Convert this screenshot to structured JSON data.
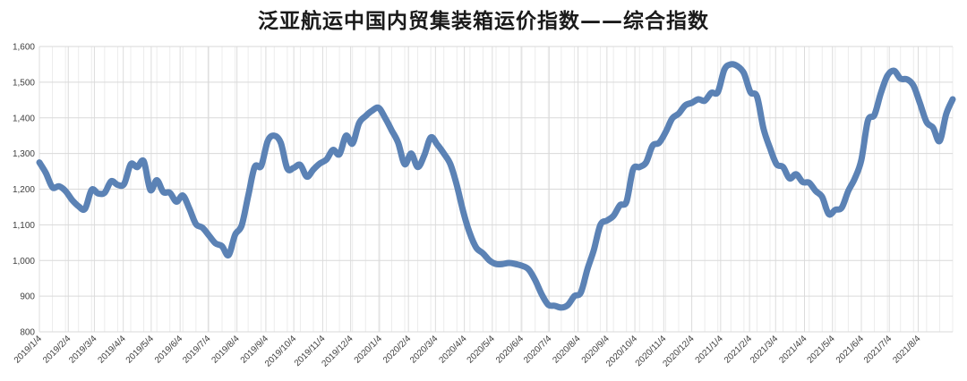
{
  "chart_data": {
    "type": "line",
    "title": "泛亚航运中国内贸集装箱运价指数——综合指数",
    "ylim": [
      800,
      1600
    ],
    "yticks": [
      "800",
      "900",
      "1,000",
      "1,100",
      "1,200",
      "1,300",
      "1,400",
      "1,500",
      "1,600"
    ],
    "ytick_values": [
      800,
      900,
      1000,
      1100,
      1200,
      1300,
      1400,
      1500,
      1600
    ],
    "categories": [
      "2019/1/4",
      "2019/2/4",
      "2019/3/4",
      "2019/4/4",
      "2019/5/4",
      "2019/6/4",
      "2019/7/4",
      "2019/8/4",
      "2019/9/4",
      "2019/10/4",
      "2019/11/4",
      "2019/12/4",
      "2020/1/4",
      "2020/2/4",
      "2020/3/4",
      "2020/4/4",
      "2020/5/4",
      "2020/6/4",
      "2020/7/4",
      "2020/8/4",
      "2020/9/4",
      "2020/10/4",
      "2020/11/4",
      "2020/12/4",
      "2021/1/4",
      "2021/2/4",
      "2021/3/4",
      "2021/4/4",
      "2021/5/4",
      "2021/6/4",
      "2021/7/4",
      "2021/8/4"
    ],
    "grid": true,
    "series": [
      {
        "color": "#5b82b5",
        "points": [
          [
            "2019-01-04",
            1275
          ],
          [
            "2019-01-11",
            1245
          ],
          [
            "2019-01-18",
            1205
          ],
          [
            "2019-01-25",
            1208
          ],
          [
            "2019-02-01",
            1195
          ],
          [
            "2019-02-08",
            1170
          ],
          [
            "2019-02-15",
            1152
          ],
          [
            "2019-02-22",
            1145
          ],
          [
            "2019-03-01",
            1198
          ],
          [
            "2019-03-08",
            1188
          ],
          [
            "2019-03-15",
            1190
          ],
          [
            "2019-03-22",
            1222
          ],
          [
            "2019-03-29",
            1212
          ],
          [
            "2019-04-05",
            1215
          ],
          [
            "2019-04-12",
            1270
          ],
          [
            "2019-04-19",
            1262
          ],
          [
            "2019-04-26",
            1278
          ],
          [
            "2019-05-03",
            1198
          ],
          [
            "2019-05-10",
            1225
          ],
          [
            "2019-05-17",
            1192
          ],
          [
            "2019-05-24",
            1190
          ],
          [
            "2019-05-31",
            1165
          ],
          [
            "2019-06-07",
            1182
          ],
          [
            "2019-06-14",
            1145
          ],
          [
            "2019-06-21",
            1102
          ],
          [
            "2019-06-28",
            1092
          ],
          [
            "2019-07-05",
            1070
          ],
          [
            "2019-07-12",
            1048
          ],
          [
            "2019-07-19",
            1040
          ],
          [
            "2019-07-26",
            1015
          ],
          [
            "2019-08-02",
            1072
          ],
          [
            "2019-08-09",
            1098
          ],
          [
            "2019-08-16",
            1180
          ],
          [
            "2019-08-23",
            1262
          ],
          [
            "2019-08-30",
            1265
          ],
          [
            "2019-09-06",
            1335
          ],
          [
            "2019-09-13",
            1350
          ],
          [
            "2019-09-20",
            1330
          ],
          [
            "2019-09-27",
            1258
          ],
          [
            "2019-10-04",
            1260
          ],
          [
            "2019-10-11",
            1268
          ],
          [
            "2019-10-18",
            1235
          ],
          [
            "2019-10-25",
            1255
          ],
          [
            "2019-11-01",
            1272
          ],
          [
            "2019-11-08",
            1283
          ],
          [
            "2019-11-15",
            1310
          ],
          [
            "2019-11-22",
            1298
          ],
          [
            "2019-11-29",
            1350
          ],
          [
            "2019-12-06",
            1328
          ],
          [
            "2019-12-13",
            1385
          ],
          [
            "2019-12-20",
            1405
          ],
          [
            "2019-12-27",
            1420
          ],
          [
            "2020-01-03",
            1428
          ],
          [
            "2020-01-10",
            1400
          ],
          [
            "2020-01-17",
            1365
          ],
          [
            "2020-01-24",
            1330
          ],
          [
            "2020-01-31",
            1270
          ],
          [
            "2020-02-07",
            1300
          ],
          [
            "2020-02-14",
            1262
          ],
          [
            "2020-02-21",
            1295
          ],
          [
            "2020-02-28",
            1345
          ],
          [
            "2020-03-06",
            1325
          ],
          [
            "2020-03-13",
            1300
          ],
          [
            "2020-03-20",
            1270
          ],
          [
            "2020-03-27",
            1210
          ],
          [
            "2020-04-03",
            1135
          ],
          [
            "2020-04-10",
            1075
          ],
          [
            "2020-04-17",
            1035
          ],
          [
            "2020-04-24",
            1020
          ],
          [
            "2020-05-01",
            1000
          ],
          [
            "2020-05-08",
            990
          ],
          [
            "2020-05-15",
            990
          ],
          [
            "2020-05-22",
            993
          ],
          [
            "2020-05-29",
            990
          ],
          [
            "2020-06-05",
            985
          ],
          [
            "2020-06-12",
            975
          ],
          [
            "2020-06-19",
            945
          ],
          [
            "2020-06-26",
            905
          ],
          [
            "2020-07-03",
            876
          ],
          [
            "2020-07-10",
            873
          ],
          [
            "2020-07-17",
            868
          ],
          [
            "2020-07-24",
            875
          ],
          [
            "2020-07-31",
            900
          ],
          [
            "2020-08-07",
            910
          ],
          [
            "2020-08-14",
            975
          ],
          [
            "2020-08-21",
            1030
          ],
          [
            "2020-08-28",
            1100
          ],
          [
            "2020-09-04",
            1112
          ],
          [
            "2020-09-11",
            1125
          ],
          [
            "2020-09-18",
            1155
          ],
          [
            "2020-09-25",
            1165
          ],
          [
            "2020-10-02",
            1255
          ],
          [
            "2020-10-09",
            1262
          ],
          [
            "2020-10-16",
            1275
          ],
          [
            "2020-10-23",
            1322
          ],
          [
            "2020-10-30",
            1330
          ],
          [
            "2020-11-06",
            1360
          ],
          [
            "2020-11-13",
            1398
          ],
          [
            "2020-11-20",
            1412
          ],
          [
            "2020-11-27",
            1435
          ],
          [
            "2020-12-04",
            1442
          ],
          [
            "2020-12-11",
            1452
          ],
          [
            "2020-12-18",
            1448
          ],
          [
            "2020-12-25",
            1470
          ],
          [
            "2021-01-01",
            1472
          ],
          [
            "2021-01-08",
            1535
          ],
          [
            "2021-01-15",
            1550
          ],
          [
            "2021-01-22",
            1545
          ],
          [
            "2021-01-29",
            1525
          ],
          [
            "2021-02-05",
            1472
          ],
          [
            "2021-02-12",
            1460
          ],
          [
            "2021-02-19",
            1370
          ],
          [
            "2021-02-26",
            1315
          ],
          [
            "2021-03-05",
            1270
          ],
          [
            "2021-03-12",
            1262
          ],
          [
            "2021-03-19",
            1230
          ],
          [
            "2021-03-26",
            1242
          ],
          [
            "2021-04-02",
            1220
          ],
          [
            "2021-04-09",
            1218
          ],
          [
            "2021-04-16",
            1195
          ],
          [
            "2021-04-23",
            1178
          ],
          [
            "2021-04-30",
            1130
          ],
          [
            "2021-05-07",
            1142
          ],
          [
            "2021-05-14",
            1148
          ],
          [
            "2021-05-21",
            1195
          ],
          [
            "2021-05-28",
            1230
          ],
          [
            "2021-06-04",
            1282
          ],
          [
            "2021-06-11",
            1392
          ],
          [
            "2021-06-18",
            1408
          ],
          [
            "2021-06-25",
            1470
          ],
          [
            "2021-07-02",
            1518
          ],
          [
            "2021-07-09",
            1532
          ],
          [
            "2021-07-16",
            1510
          ],
          [
            "2021-07-23",
            1508
          ],
          [
            "2021-07-30",
            1490
          ],
          [
            "2021-08-06",
            1440
          ],
          [
            "2021-08-13",
            1388
          ],
          [
            "2021-08-20",
            1372
          ],
          [
            "2021-08-27",
            1335
          ],
          [
            "2021-09-03",
            1410
          ],
          [
            "2021-09-10",
            1452
          ]
        ]
      }
    ]
  }
}
